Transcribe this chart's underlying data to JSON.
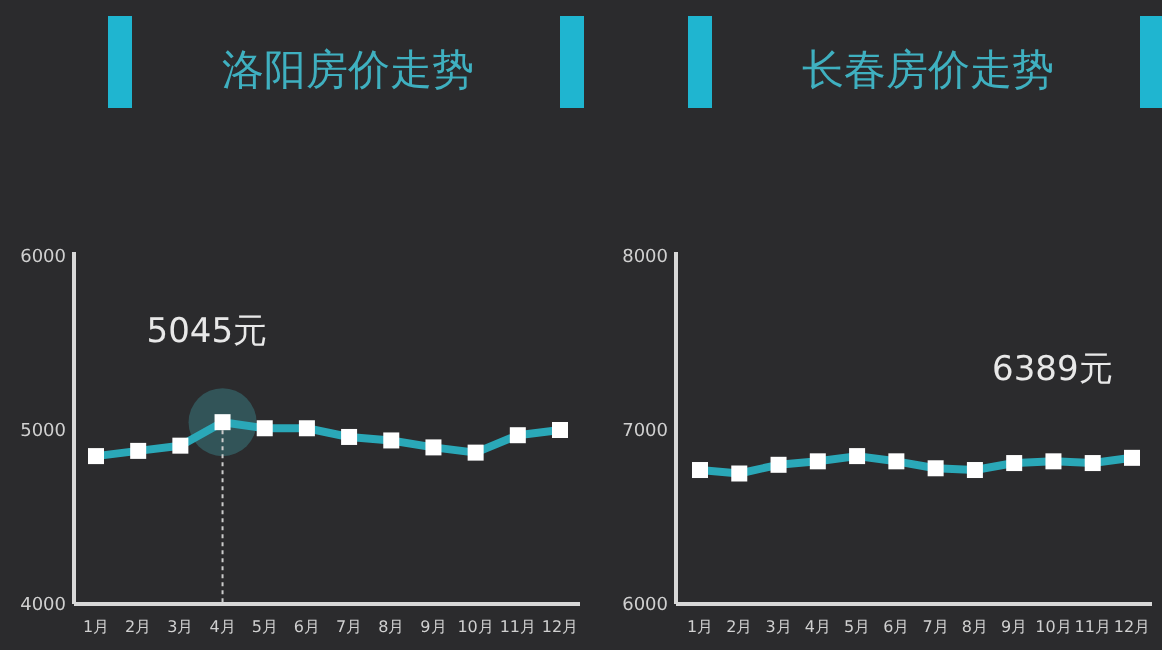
{
  "chart_data": [
    {
      "type": "line",
      "title": "洛阳房价走势",
      "categories": [
        "1月",
        "2月",
        "3月",
        "4月",
        "5月",
        "6月",
        "7月",
        "8月",
        "9月",
        "10月",
        "11月",
        "12月"
      ],
      "series": [
        {
          "color": "#2aa8b8",
          "values": [
            4850,
            4880,
            4910,
            5045,
            5010,
            5010,
            4960,
            4940,
            4900,
            4870,
            4970,
            5000
          ]
        }
      ],
      "ylim": [
        4000,
        6000
      ],
      "yticks": [
        4000,
        5000,
        6000
      ],
      "marker": "square",
      "grid": false,
      "ref_lines": [
        {
          "axis": "x",
          "value": "4月",
          "color": "#cccccc",
          "line_style": "dotted"
        }
      ],
      "annotations": [
        {
          "text": "5045元",
          "x": "4月",
          "y": 5045
        }
      ]
    },
    {
      "type": "line",
      "title": "长春房价走势",
      "categories": [
        "1月",
        "2月",
        "3月",
        "4月",
        "5月",
        "6月",
        "7月",
        "8月",
        "9月",
        "10月",
        "11月",
        "12月"
      ],
      "series": [
        {
          "color": "#2aa8b8",
          "values": [
            6770,
            6750,
            6800,
            6820,
            6850,
            6820,
            6780,
            6770,
            6810,
            6820,
            6810,
            6840
          ]
        }
      ],
      "ylim": [
        6000,
        8000
      ],
      "yticks": [
        6000,
        7000,
        8000
      ],
      "marker": "square",
      "grid": false,
      "annotations": [
        "6389元"
      ]
    }
  ]
}
